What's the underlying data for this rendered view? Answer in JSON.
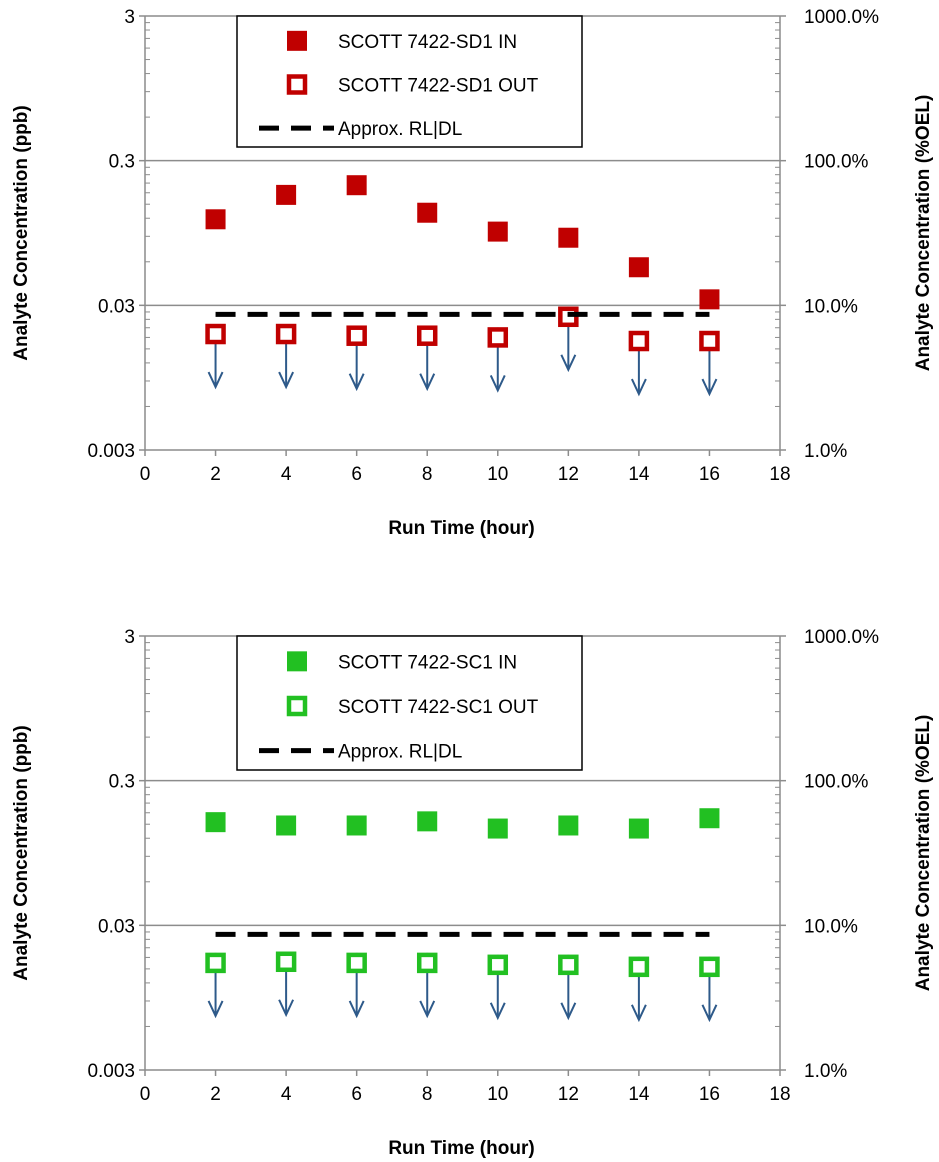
{
  "chart_data": [
    {
      "type": "scatter",
      "xlabel": "Run Time (hour)",
      "ylabel": "Analyte Concentration (ppb)",
      "y2label": "Analyte Concentration (%OEL)",
      "xlim": [
        0,
        18
      ],
      "xticks": [
        "0",
        "2",
        "4",
        "6",
        "8",
        "10",
        "12",
        "14",
        "16",
        "18"
      ],
      "ylim": [
        0.003,
        3
      ],
      "yscale": "log",
      "yticks": [
        "3",
        "0.3",
        "0.03",
        "0.003"
      ],
      "y2ticks": [
        "1000.0%",
        "100.0%",
        "10.0%",
        "1.0%"
      ],
      "grid": "horizontal major",
      "legend_position": "top-center",
      "series": [
        {
          "name": "SCOTT 7422-SD1 IN",
          "marker": "filled-square",
          "color": "#c00000",
          "x": [
            2,
            4,
            6,
            8,
            10,
            12,
            14,
            16
          ],
          "y": [
            0.118,
            0.174,
            0.203,
            0.131,
            0.097,
            0.088,
            0.055,
            0.033
          ]
        },
        {
          "name": "SCOTT 7422-SD1 OUT",
          "marker": "open-square",
          "color": "#c00000",
          "nondetect_arrows": true,
          "x": [
            2,
            4,
            6,
            8,
            10,
            12,
            14,
            16
          ],
          "y": [
            0.019,
            0.019,
            0.0185,
            0.0185,
            0.018,
            0.025,
            0.017,
            0.017
          ]
        },
        {
          "name": "Approx. RL|DL",
          "marker": "dashed-line",
          "color": "#000000",
          "x": [
            2,
            16
          ],
          "y": [
            0.026,
            0.026
          ]
        }
      ]
    },
    {
      "type": "scatter",
      "xlabel": "Run Time (hour)",
      "ylabel": "Analyte Concentration (ppb)",
      "y2label": "Analyte Concentration (%OEL)",
      "xlim": [
        0,
        18
      ],
      "xticks": [
        "0",
        "2",
        "4",
        "6",
        "8",
        "10",
        "12",
        "14",
        "16",
        "18"
      ],
      "ylim": [
        0.003,
        3
      ],
      "yscale": "log",
      "yticks": [
        "3",
        "0.3",
        "0.03",
        "0.003"
      ],
      "y2ticks": [
        "1000.0%",
        "100.0%",
        "10.0%",
        "1.0%"
      ],
      "grid": "horizontal major",
      "legend_position": "top-center",
      "series": [
        {
          "name": "SCOTT 7422-SC1 IN",
          "marker": "filled-square",
          "color": "#22c022",
          "x": [
            2,
            4,
            6,
            8,
            10,
            12,
            14,
            16
          ],
          "y": [
            0.155,
            0.147,
            0.147,
            0.157,
            0.14,
            0.147,
            0.14,
            0.165
          ]
        },
        {
          "name": "SCOTT 7422-SC1 OUT",
          "marker": "open-square",
          "color": "#22c022",
          "nondetect_arrows": true,
          "x": [
            2,
            4,
            6,
            8,
            10,
            12,
            14,
            16
          ],
          "y": [
            0.0165,
            0.0168,
            0.0165,
            0.0165,
            0.016,
            0.016,
            0.0155,
            0.0155
          ]
        },
        {
          "name": "Approx. RL|DL",
          "marker": "dashed-line",
          "color": "#000000",
          "x": [
            2,
            16
          ],
          "y": [
            0.026,
            0.026
          ]
        }
      ]
    }
  ]
}
